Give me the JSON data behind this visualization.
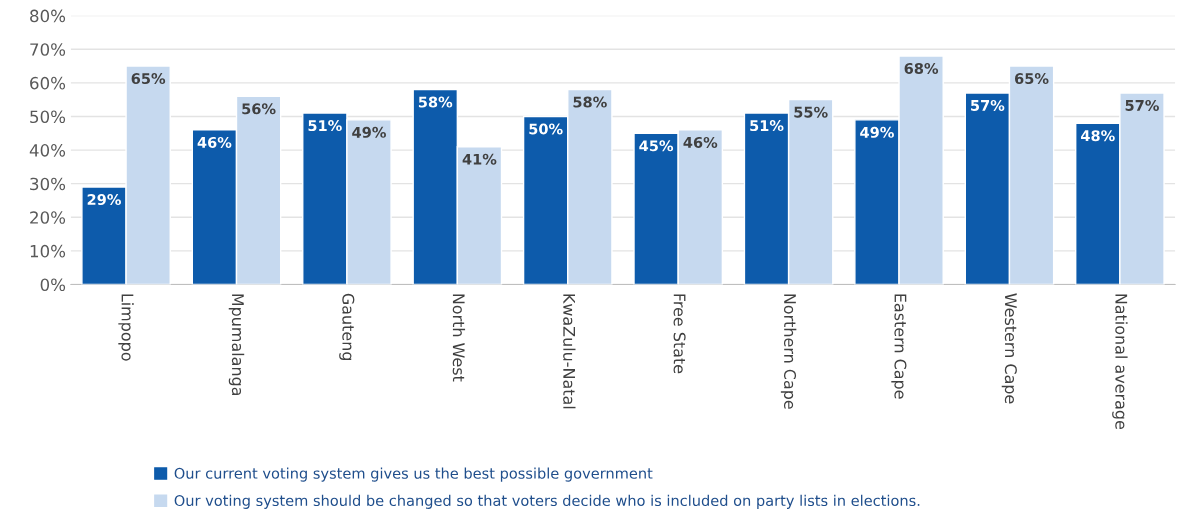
{
  "chart_data": {
    "type": "bar",
    "categories": [
      "Limpopo",
      "Mpumalanga",
      "Gauteng",
      "North West",
      "KwaZulu-Natal",
      "Free State",
      "Northern Cape",
      "Eastern Cape",
      "Western Cape",
      "National average"
    ],
    "series": [
      {
        "name": "Our current voting system gives us the best possible government",
        "color": "#0d5bab",
        "values": [
          29,
          46,
          51,
          58,
          50,
          45,
          51,
          49,
          57,
          48
        ],
        "value_labels": [
          "29%",
          "46%",
          "51%",
          "58%",
          "50%",
          "45%",
          "51%",
          "49%",
          "57%",
          "48%"
        ]
      },
      {
        "name": "Our voting system should be changed so that voters decide who is included on party lists in elections.",
        "color": "#c6d9ef",
        "values": [
          65,
          56,
          49,
          41,
          58,
          46,
          55,
          68,
          65,
          57
        ],
        "value_labels": [
          "65%",
          "56%",
          "49%",
          "41%",
          "58%",
          "46%",
          "55%",
          "68%",
          "65%",
          "57%"
        ]
      }
    ],
    "ylim": [
      0,
      80
    ],
    "yticks": [
      {
        "value": 0,
        "label": "0%"
      },
      {
        "value": 10,
        "label": "10%"
      },
      {
        "value": 20,
        "label": "20%"
      },
      {
        "value": 30,
        "label": "30%"
      },
      {
        "value": 40,
        "label": "40%"
      },
      {
        "value": 50,
        "label": "50%"
      },
      {
        "value": 60,
        "label": "60%"
      },
      {
        "value": 70,
        "label": "70%"
      },
      {
        "value": 80,
        "label": "80%"
      }
    ],
    "grid": "y",
    "legend": "bottom"
  }
}
